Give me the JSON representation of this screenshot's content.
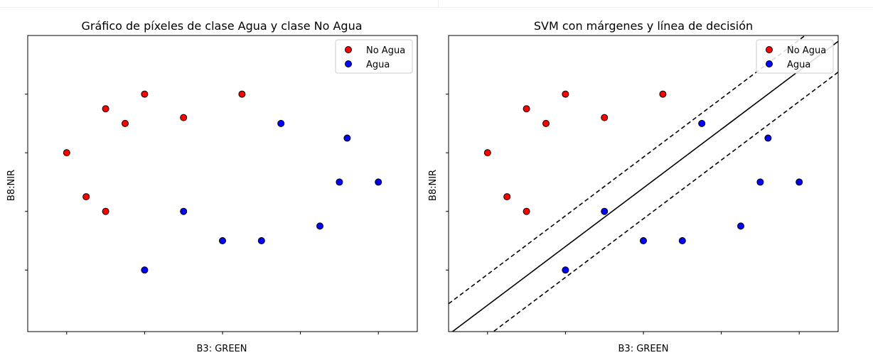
{
  "colors": {
    "class_a": "#ff0000",
    "class_b": "#0000ff",
    "edge": "#000000"
  },
  "chart_data": [
    {
      "type": "scatter",
      "title": "Gráfico de píxeles de clase Agua y clase No Agua",
      "xlabel": "B3: GREEN",
      "ylabel": "B8:NIR",
      "xlim": [
        -1,
        9
      ],
      "ylim": [
        -0.1,
        10
      ],
      "tick_labels_visible": false,
      "legend": "top-right",
      "series": [
        {
          "name": "No Agua",
          "color": "#ff0000",
          "points": [
            [
              0,
              6
            ],
            [
              0.5,
              4.5
            ],
            [
              1,
              4
            ],
            [
              1,
              7.5
            ],
            [
              1.5,
              7
            ],
            [
              2,
              8
            ],
            [
              3,
              7.2
            ],
            [
              4.5,
              8
            ]
          ]
        },
        {
          "name": "Agua",
          "color": "#0000ff",
          "points": [
            [
              2,
              2
            ],
            [
              3,
              4
            ],
            [
              4,
              3
            ],
            [
              5,
              3
            ],
            [
              5.5,
              7
            ],
            [
              6.5,
              3.5
            ],
            [
              7,
              5
            ],
            [
              7.2,
              6.5
            ],
            [
              8,
              5
            ]
          ]
        }
      ]
    },
    {
      "type": "scatter",
      "title": "SVM con márgenes y línea de decisión",
      "xlabel": "B3: GREEN",
      "ylabel": "B8:NIR",
      "xlim": [
        -1,
        9
      ],
      "ylim": [
        -0.1,
        10
      ],
      "tick_labels_visible": false,
      "legend": "top-right",
      "decision_line": {
        "slope": 1,
        "intercept": 0.8
      },
      "margin_lines": [
        {
          "slope": 1,
          "intercept": 1.85
        },
        {
          "slope": 1,
          "intercept": -0.25
        }
      ],
      "series": [
        {
          "name": "No Agua",
          "color": "#ff0000",
          "points": [
            [
              0,
              6
            ],
            [
              0.5,
              4.5
            ],
            [
              1,
              4
            ],
            [
              1,
              7.5
            ],
            [
              1.5,
              7
            ],
            [
              2,
              8
            ],
            [
              3,
              7.2
            ],
            [
              4.5,
              8
            ]
          ]
        },
        {
          "name": "Agua",
          "color": "#0000ff",
          "points": [
            [
              2,
              2
            ],
            [
              3,
              4
            ],
            [
              4,
              3
            ],
            [
              5,
              3
            ],
            [
              5.5,
              7
            ],
            [
              6.5,
              3.5
            ],
            [
              7,
              5
            ],
            [
              7.2,
              6.5
            ],
            [
              8,
              5
            ]
          ]
        }
      ]
    }
  ]
}
